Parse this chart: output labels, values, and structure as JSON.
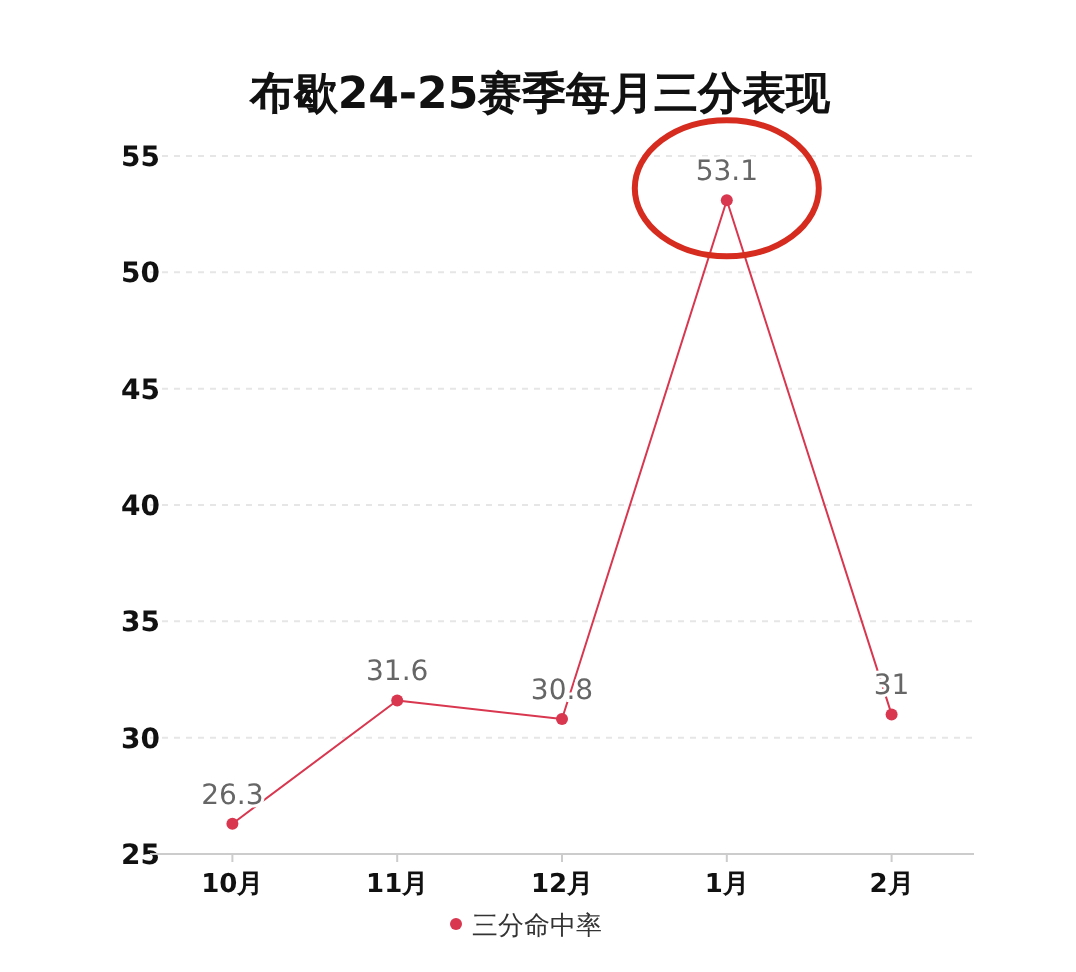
{
  "chart_data": {
    "type": "line",
    "title": "布歇24-25赛季每月三分表现",
    "categories": [
      "10月",
      "11月",
      "12月",
      "1月",
      "2月"
    ],
    "series": [
      {
        "name": "三分命中率",
        "color": "#d8374f",
        "values": [
          26.3,
          31.6,
          30.8,
          53.1,
          31
        ]
      }
    ],
    "ylim": [
      25,
      55
    ],
    "yticks": [
      25,
      30,
      35,
      40,
      45,
      50,
      55
    ],
    "grid": "y",
    "legend": "bottom",
    "data_labels": true,
    "marker": "circle"
  }
}
